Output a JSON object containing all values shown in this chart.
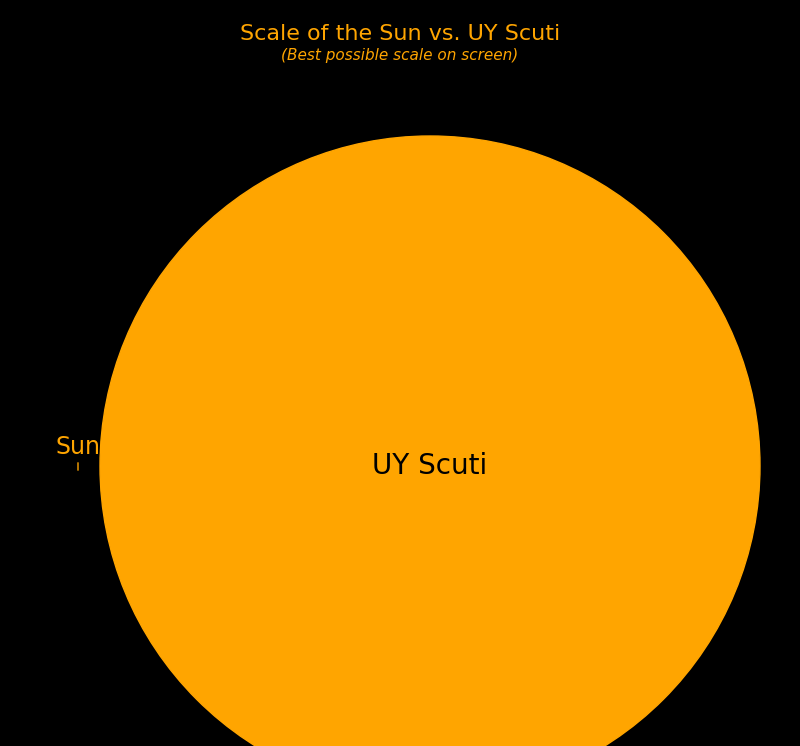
{
  "background_color": "#000000",
  "title": "Scale of the Sun vs. UY Scuti",
  "subtitle": "(Best possible scale on screen)",
  "title_color": "#FFA500",
  "subtitle_color": "#FFA500",
  "title_fontsize": 16,
  "subtitle_fontsize": 11,
  "uy_scuti_color": "#FFA500",
  "uy_scuti_label": "UY Scuti",
  "uy_scuti_label_fontsize": 20,
  "sun_label": "Sun",
  "sun_label_fontsize": 17,
  "sun_color": "#FFA500"
}
